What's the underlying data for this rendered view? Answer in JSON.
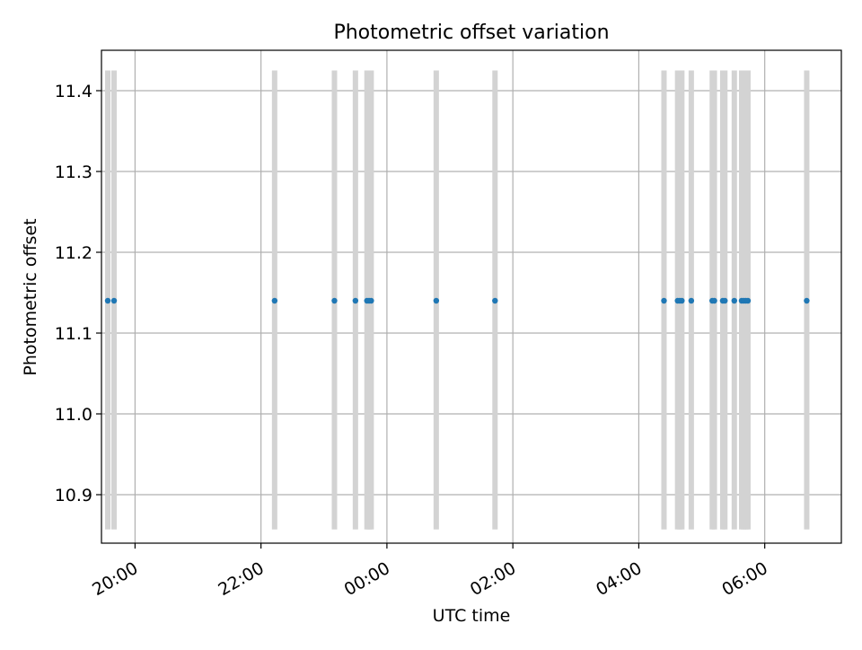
{
  "chart_data": {
    "type": "scatter",
    "title": "Photometric offset variation",
    "xlabel": "UTC time",
    "ylabel": "Photometric offset",
    "xlim": [
      "19:28",
      "07:13"
    ],
    "ylim": [
      10.84,
      11.45
    ],
    "x_ticks": [
      "20:00",
      "22:00",
      "00:00",
      "02:00",
      "04:00",
      "06:00"
    ],
    "y_ticks": [
      "10.9",
      "11.0",
      "11.1",
      "11.2",
      "11.3",
      "11.4"
    ],
    "grid": true,
    "band_range": [
      10.857,
      11.425
    ],
    "points": [
      {
        "time": "19:34",
        "offset": 11.14
      },
      {
        "time": "19:40",
        "offset": 11.14
      },
      {
        "time": "22:13",
        "offset": 11.14
      },
      {
        "time": "23:10",
        "offset": 11.14
      },
      {
        "time": "23:30",
        "offset": 11.14
      },
      {
        "time": "23:41",
        "offset": 11.14
      },
      {
        "time": "23:43",
        "offset": 11.14
      },
      {
        "time": "23:45",
        "offset": 11.14
      },
      {
        "time": "00:47",
        "offset": 11.14
      },
      {
        "time": "01:43",
        "offset": 11.14
      },
      {
        "time": "04:24",
        "offset": 11.14
      },
      {
        "time": "04:37",
        "offset": 11.14
      },
      {
        "time": "04:39",
        "offset": 11.14
      },
      {
        "time": "04:41",
        "offset": 11.14
      },
      {
        "time": "04:50",
        "offset": 11.14
      },
      {
        "time": "05:10",
        "offset": 11.14
      },
      {
        "time": "05:12",
        "offset": 11.14
      },
      {
        "time": "05:20",
        "offset": 11.14
      },
      {
        "time": "05:22",
        "offset": 11.14
      },
      {
        "time": "05:31",
        "offset": 11.14
      },
      {
        "time": "05:38",
        "offset": 11.14
      },
      {
        "time": "05:40",
        "offset": 11.14
      },
      {
        "time": "05:42",
        "offset": 11.14
      },
      {
        "time": "05:44",
        "offset": 11.14
      },
      {
        "time": "06:40",
        "offset": 11.14
      }
    ],
    "colors": {
      "point": "#1f77b4",
      "band": "#d3d3d3",
      "grid": "#b0b0b0",
      "axes": "#000000"
    }
  }
}
